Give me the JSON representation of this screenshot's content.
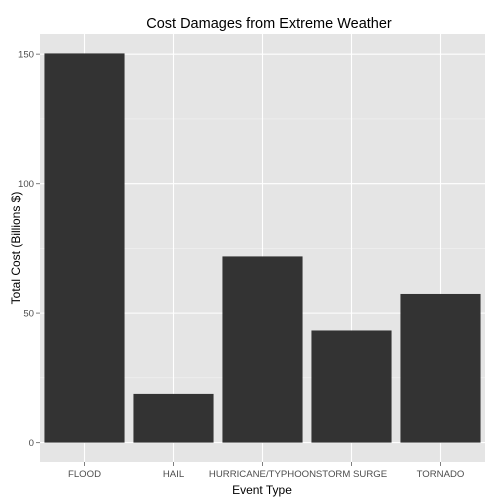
{
  "chart_data": {
    "type": "bar",
    "title": "Cost Damages from Extreme Weather",
    "xlabel": "Event Type",
    "ylabel": "Total Cost (Billions $)",
    "categories": [
      "FLOOD",
      "HAIL",
      "HURRICANE/TYPHOON",
      "STORM SURGE",
      "TORNADO"
    ],
    "values": [
      150.3,
      18.8,
      71.9,
      43.3,
      57.4
    ],
    "ylim": [
      -7.5,
      157.8
    ],
    "yticks": [
      0,
      50,
      100,
      150
    ],
    "ytick_labels": [
      "0",
      "50",
      "100",
      "150"
    ],
    "grid": true,
    "legend": "none",
    "colors": {
      "panel_background": "#e5e5e5",
      "grid_major": "#ffffff",
      "grid_minor": "#f2f2f2",
      "bar_fill": "#333333",
      "tick_text": "#4d4d4d"
    }
  }
}
